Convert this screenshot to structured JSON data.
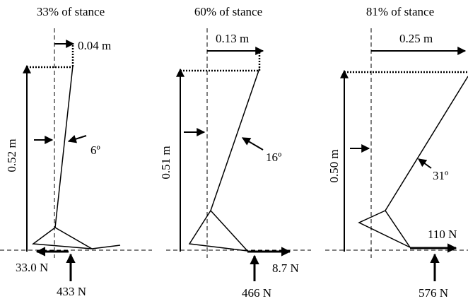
{
  "panels": [
    {
      "title": "33% of stance",
      "height": "0.52 m",
      "offset": "0.04 m",
      "angle": "6º",
      "horizontal_force": "33.0 N",
      "vertical_force": "433 N"
    },
    {
      "title": "60% of stance",
      "height": "0.51 m",
      "offset": "0.13 m",
      "angle": "16º",
      "horizontal_force": "8.7 N",
      "vertical_force": "466 N"
    },
    {
      "title": "81% of stance",
      "height": "0.50 m",
      "offset": "0.25 m",
      "angle": "31º",
      "horizontal_force": "110 N",
      "vertical_force": "576 N"
    }
  ]
}
